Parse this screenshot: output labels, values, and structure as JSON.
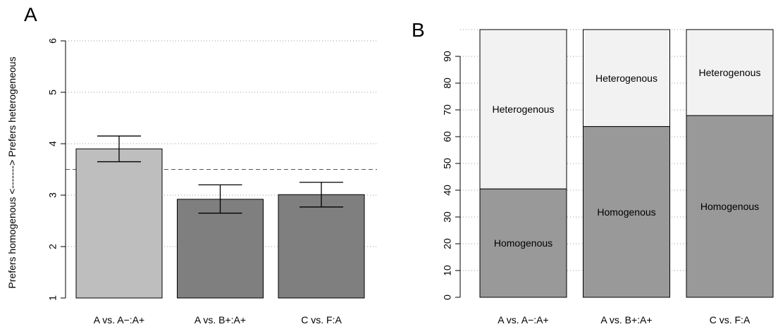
{
  "chart_data": [
    {
      "panel": "A",
      "type": "bar",
      "ylabel": "Prefers homogenous <-------> Prefers heterogeneous",
      "ylim": [
        1,
        6
      ],
      "yticks": [
        1,
        2,
        3,
        4,
        5,
        6
      ],
      "grid": true,
      "reference_line": 3.5,
      "categories": [
        "A vs. A−:A+",
        "A vs. B+:A+",
        "C vs. F:A"
      ],
      "values": [
        3.9,
        2.92,
        3.01
      ],
      "error_low": [
        3.65,
        2.65,
        2.77
      ],
      "error_high": [
        4.15,
        3.2,
        3.25
      ],
      "bar_colors": [
        "#bebebe",
        "#7f7f7f",
        "#7f7f7f"
      ]
    },
    {
      "panel": "B",
      "type": "bar",
      "stacked": true,
      "ylim": [
        0,
        100
      ],
      "yticks": [
        0,
        10,
        20,
        30,
        40,
        50,
        60,
        70,
        80,
        90
      ],
      "grid": true,
      "categories": [
        "A vs. A−:A+",
        "A vs. B+:A+",
        "C vs. F:A"
      ],
      "series": [
        {
          "name": "Homogenous",
          "values": [
            40.5,
            63.8,
            67.9
          ],
          "color": "#999999"
        },
        {
          "name": "Heterogenous",
          "values": [
            59.5,
            36.2,
            32.1
          ],
          "color": "#f2f2f2"
        }
      ]
    }
  ]
}
